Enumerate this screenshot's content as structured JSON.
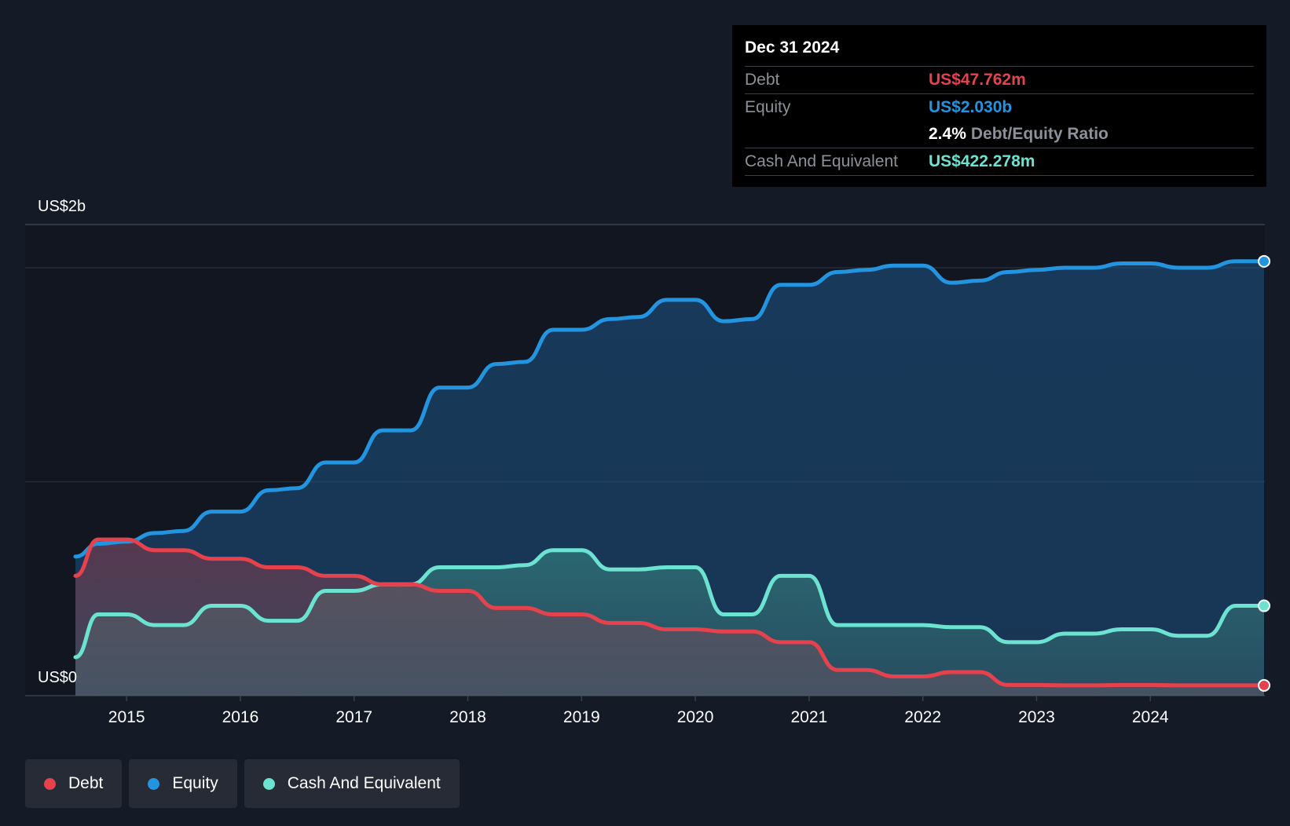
{
  "tooltip": {
    "date": "Dec 31 2024",
    "debt_label": "Debt",
    "debt_value": "US$47.762m",
    "equity_label": "Equity",
    "equity_value": "US$2.030b",
    "ratio_value": "2.4%",
    "ratio_label": "Debt/Equity Ratio",
    "cash_label": "Cash And Equivalent",
    "cash_value": "US$422.278m"
  },
  "legend": [
    {
      "label": "Debt",
      "color": "#e5424d"
    },
    {
      "label": "Equity",
      "color": "#2394df"
    },
    {
      "label": "Cash And Equivalent",
      "color": "#6ce2d1"
    }
  ],
  "chart_data": {
    "type": "area",
    "title": "",
    "xlabel": "",
    "ylabel": "",
    "y_axis_labels": [
      "US$2b",
      "US$0"
    ],
    "ylim": [
      0,
      2.2
    ],
    "xlim": [
      2014.55,
      2025.0
    ],
    "x_ticks": [
      "2015",
      "2016",
      "2017",
      "2018",
      "2019",
      "2020",
      "2021",
      "2022",
      "2023",
      "2024"
    ],
    "x_tick_values": [
      2015,
      2016,
      2017,
      2018,
      2019,
      2020,
      2021,
      2022,
      2023,
      2024
    ],
    "series": [
      {
        "name": "Equity",
        "color": "#2394df",
        "points": [
          [
            2014.55,
            0.65
          ],
          [
            2014.75,
            0.71
          ],
          [
            2015.0,
            0.72
          ],
          [
            2015.25,
            0.76
          ],
          [
            2015.5,
            0.77
          ],
          [
            2015.75,
            0.86
          ],
          [
            2016.0,
            0.86
          ],
          [
            2016.25,
            0.96
          ],
          [
            2016.5,
            0.97
          ],
          [
            2016.75,
            1.09
          ],
          [
            2017.0,
            1.09
          ],
          [
            2017.25,
            1.24
          ],
          [
            2017.5,
            1.24
          ],
          [
            2017.75,
            1.44
          ],
          [
            2018.0,
            1.44
          ],
          [
            2018.25,
            1.55
          ],
          [
            2018.5,
            1.56
          ],
          [
            2018.75,
            1.71
          ],
          [
            2019.0,
            1.71
          ],
          [
            2019.25,
            1.76
          ],
          [
            2019.5,
            1.77
          ],
          [
            2019.75,
            1.85
          ],
          [
            2020.0,
            1.85
          ],
          [
            2020.25,
            1.75
          ],
          [
            2020.5,
            1.76
          ],
          [
            2020.75,
            1.92
          ],
          [
            2021.0,
            1.92
          ],
          [
            2021.25,
            1.98
          ],
          [
            2021.5,
            1.99
          ],
          [
            2021.75,
            2.01
          ],
          [
            2022.0,
            2.01
          ],
          [
            2022.25,
            1.93
          ],
          [
            2022.5,
            1.94
          ],
          [
            2022.75,
            1.98
          ],
          [
            2023.0,
            1.99
          ],
          [
            2023.25,
            2.0
          ],
          [
            2023.5,
            2.0
          ],
          [
            2023.75,
            2.02
          ],
          [
            2024.0,
            2.02
          ],
          [
            2024.25,
            2.0
          ],
          [
            2024.5,
            2.0
          ],
          [
            2024.75,
            2.03
          ],
          [
            2025.0,
            2.03
          ]
        ]
      },
      {
        "name": "Cash And Equivalent",
        "color": "#6ce2d1",
        "points": [
          [
            2014.55,
            0.18
          ],
          [
            2014.75,
            0.38
          ],
          [
            2015.0,
            0.38
          ],
          [
            2015.25,
            0.33
          ],
          [
            2015.5,
            0.33
          ],
          [
            2015.75,
            0.42
          ],
          [
            2016.0,
            0.42
          ],
          [
            2016.25,
            0.35
          ],
          [
            2016.5,
            0.35
          ],
          [
            2016.75,
            0.49
          ],
          [
            2017.0,
            0.49
          ],
          [
            2017.25,
            0.52
          ],
          [
            2017.5,
            0.52
          ],
          [
            2017.75,
            0.6
          ],
          [
            2018.0,
            0.6
          ],
          [
            2018.25,
            0.6
          ],
          [
            2018.5,
            0.61
          ],
          [
            2018.75,
            0.68
          ],
          [
            2019.0,
            0.68
          ],
          [
            2019.25,
            0.59
          ],
          [
            2019.5,
            0.59
          ],
          [
            2019.75,
            0.6
          ],
          [
            2020.0,
            0.6
          ],
          [
            2020.25,
            0.38
          ],
          [
            2020.5,
            0.38
          ],
          [
            2020.75,
            0.56
          ],
          [
            2021.0,
            0.56
          ],
          [
            2021.25,
            0.33
          ],
          [
            2021.5,
            0.33
          ],
          [
            2021.75,
            0.33
          ],
          [
            2022.0,
            0.33
          ],
          [
            2022.25,
            0.32
          ],
          [
            2022.5,
            0.32
          ],
          [
            2022.75,
            0.25
          ],
          [
            2023.0,
            0.25
          ],
          [
            2023.25,
            0.29
          ],
          [
            2023.5,
            0.29
          ],
          [
            2023.75,
            0.31
          ],
          [
            2024.0,
            0.31
          ],
          [
            2024.25,
            0.28
          ],
          [
            2024.5,
            0.28
          ],
          [
            2024.75,
            0.42
          ],
          [
            2025.0,
            0.42
          ]
        ]
      },
      {
        "name": "Debt",
        "color": "#e5424d",
        "points": [
          [
            2014.55,
            0.56
          ],
          [
            2014.75,
            0.73
          ],
          [
            2015.0,
            0.73
          ],
          [
            2015.25,
            0.68
          ],
          [
            2015.5,
            0.68
          ],
          [
            2015.75,
            0.64
          ],
          [
            2016.0,
            0.64
          ],
          [
            2016.25,
            0.6
          ],
          [
            2016.5,
            0.6
          ],
          [
            2016.75,
            0.56
          ],
          [
            2017.0,
            0.56
          ],
          [
            2017.25,
            0.52
          ],
          [
            2017.5,
            0.52
          ],
          [
            2017.75,
            0.49
          ],
          [
            2018.0,
            0.49
          ],
          [
            2018.25,
            0.41
          ],
          [
            2018.5,
            0.41
          ],
          [
            2018.75,
            0.38
          ],
          [
            2019.0,
            0.38
          ],
          [
            2019.25,
            0.34
          ],
          [
            2019.5,
            0.34
          ],
          [
            2019.75,
            0.31
          ],
          [
            2020.0,
            0.31
          ],
          [
            2020.25,
            0.3
          ],
          [
            2020.5,
            0.3
          ],
          [
            2020.75,
            0.25
          ],
          [
            2021.0,
            0.25
          ],
          [
            2021.25,
            0.12
          ],
          [
            2021.5,
            0.12
          ],
          [
            2021.75,
            0.09
          ],
          [
            2022.0,
            0.09
          ],
          [
            2022.25,
            0.11
          ],
          [
            2022.5,
            0.11
          ],
          [
            2022.75,
            0.05
          ],
          [
            2023.0,
            0.05
          ],
          [
            2023.25,
            0.048
          ],
          [
            2023.5,
            0.048
          ],
          [
            2023.75,
            0.05
          ],
          [
            2024.0,
            0.05
          ],
          [
            2024.25,
            0.048
          ],
          [
            2024.5,
            0.048
          ],
          [
            2024.75,
            0.048
          ],
          [
            2025.0,
            0.048
          ]
        ]
      }
    ]
  }
}
